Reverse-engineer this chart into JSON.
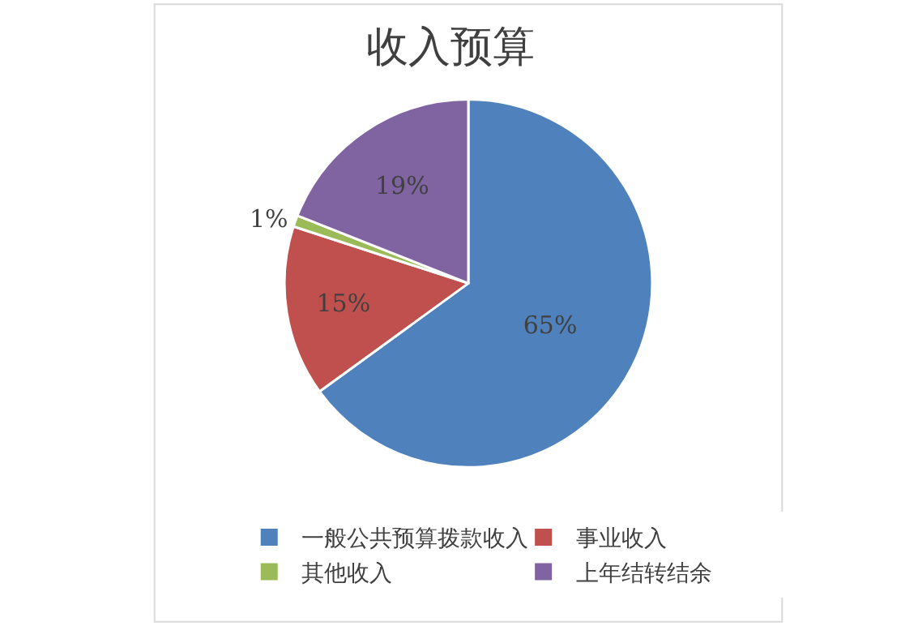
{
  "chart_data": {
    "type": "pie",
    "title": "收入预算",
    "categories": [
      "一般公共预算拨款收入",
      "事业收入",
      "其他收入",
      "上年结转结余"
    ],
    "values": [
      65,
      15,
      1,
      19
    ],
    "value_labels": [
      "65%",
      "15%",
      "1%",
      "19%"
    ],
    "colors": [
      "#4f81bd",
      "#c0504d",
      "#9bbb59",
      "#8064a2"
    ],
    "legend": "bottom"
  }
}
